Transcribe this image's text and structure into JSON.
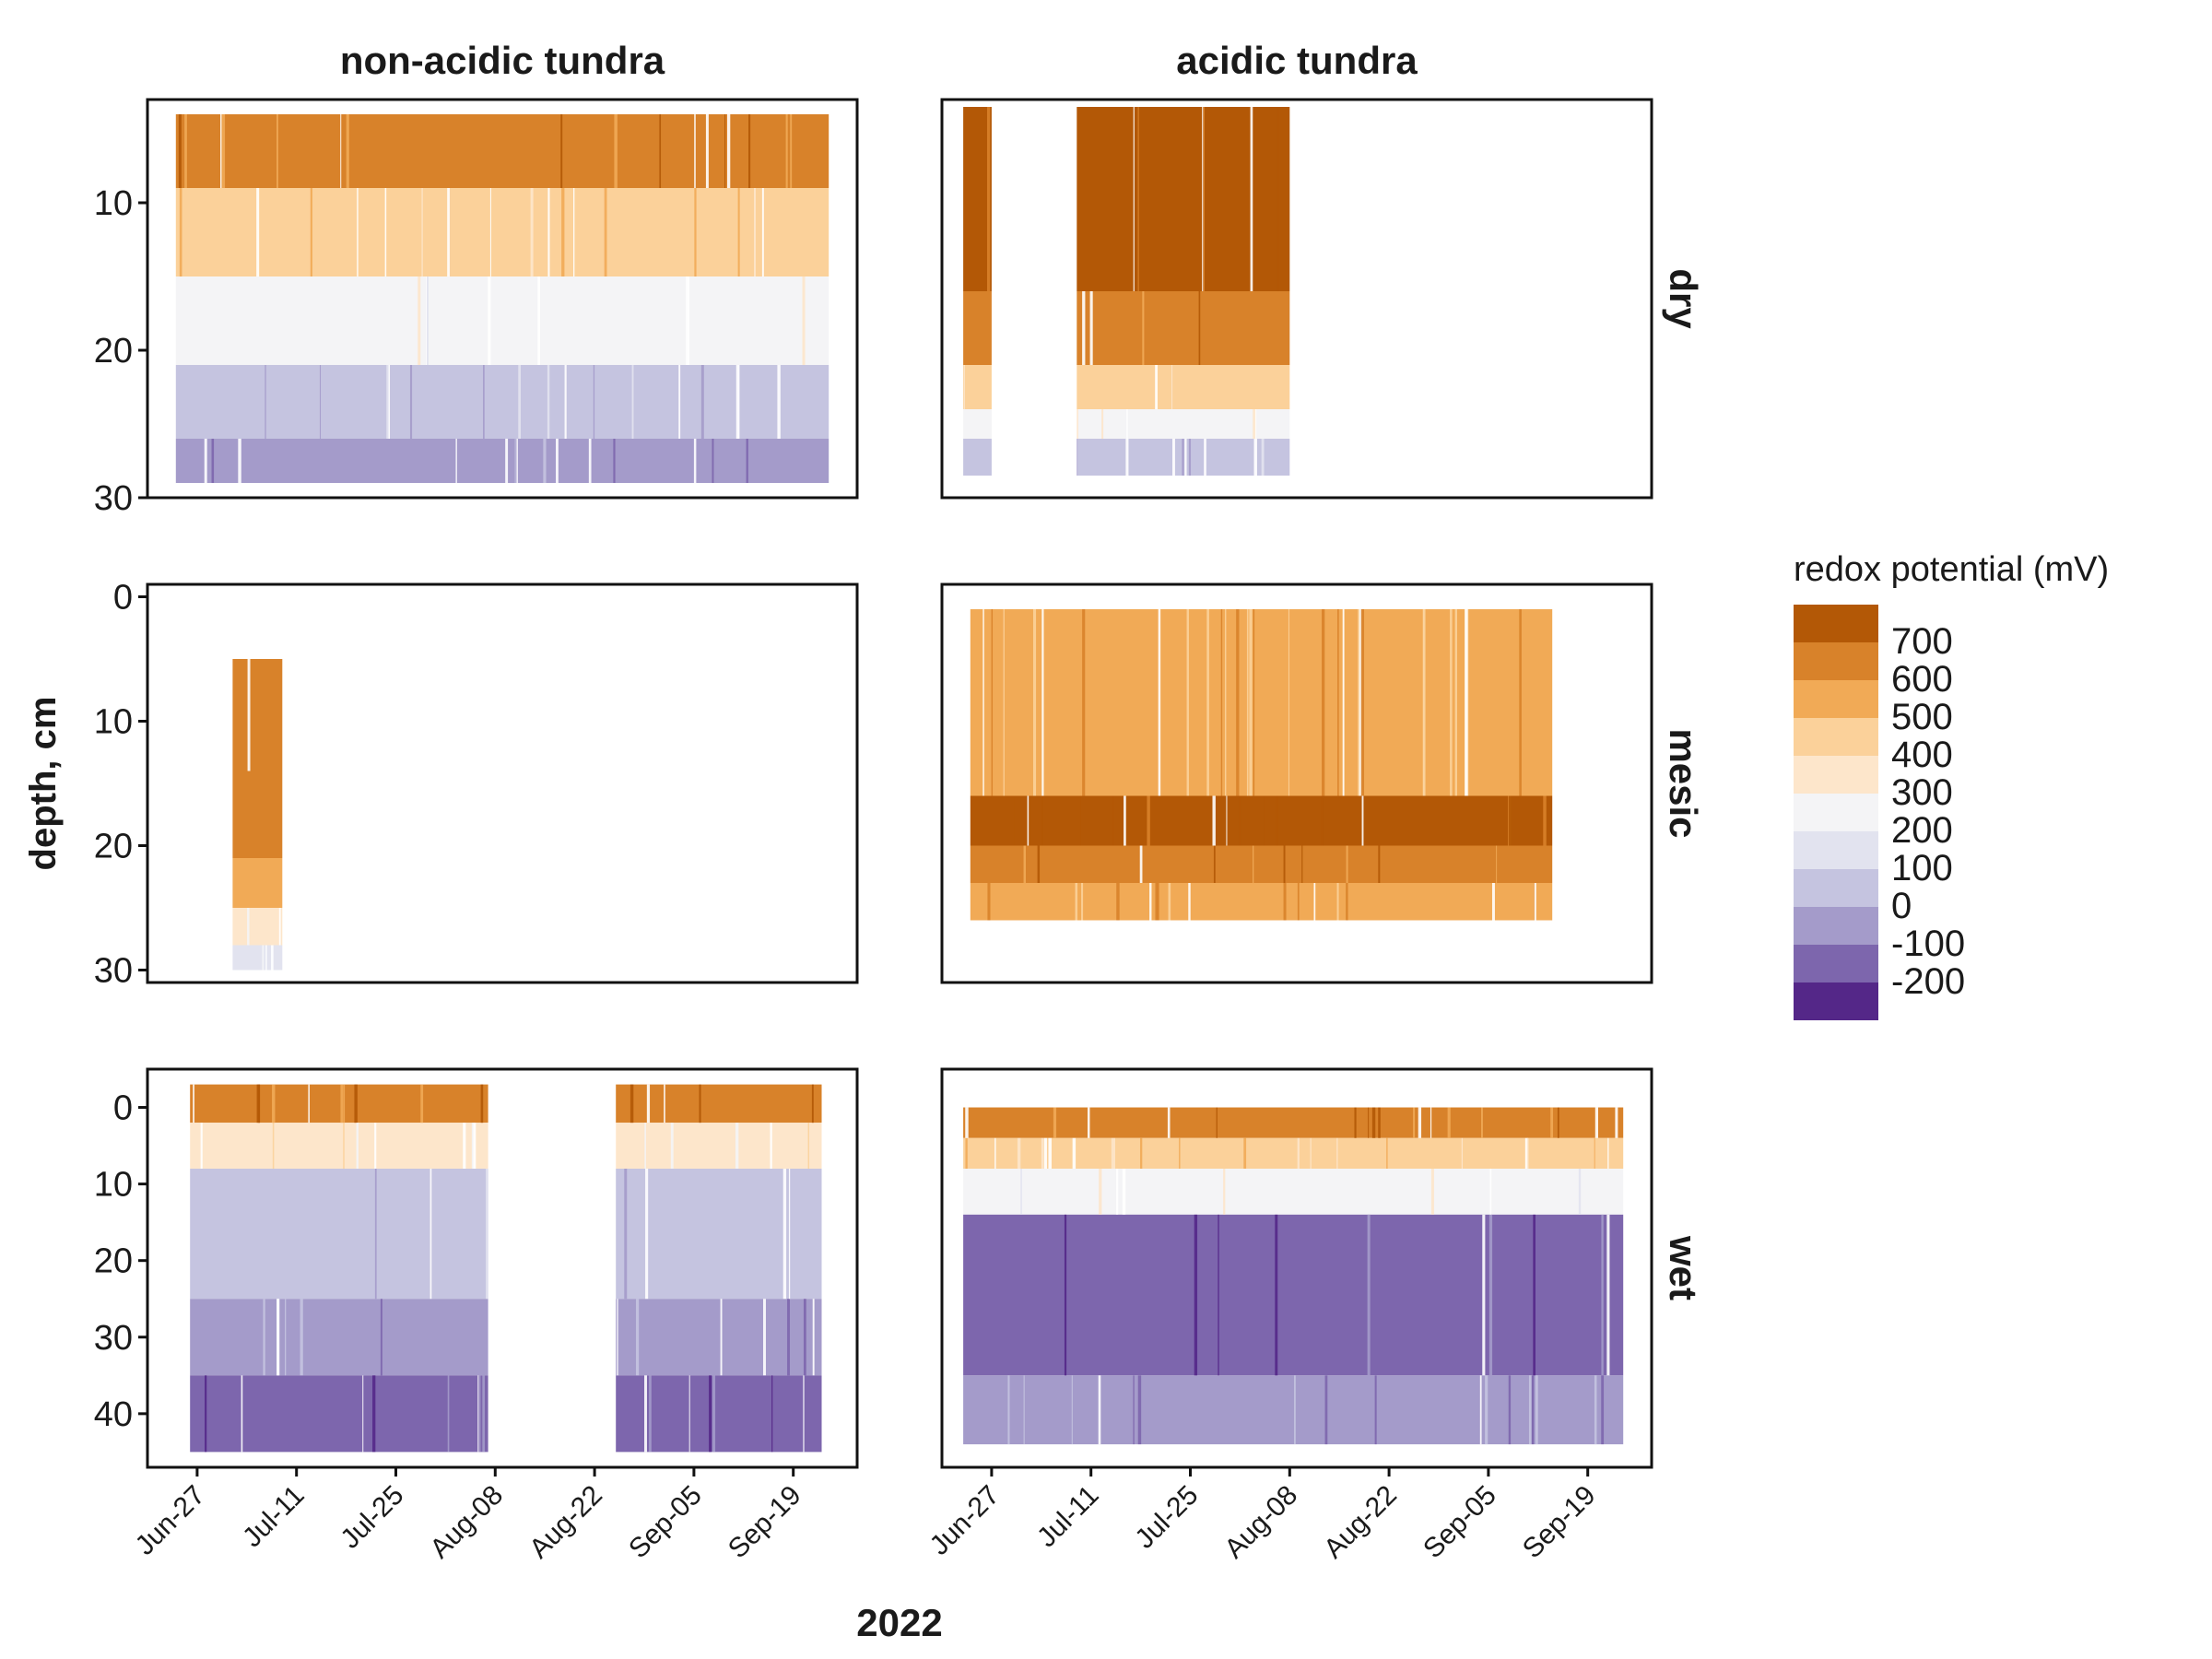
{
  "chart_data": {
    "type": "heatmap",
    "title": "",
    "xlabel": "2022",
    "ylabel": "depth, cm",
    "column_facets": [
      "non-acidic tundra",
      "acidic tundra"
    ],
    "row_facets": [
      "dry",
      "mesic",
      "wet"
    ],
    "x_ticks": [
      "Jun-27",
      "Jul-11",
      "Jul-25",
      "Aug-08",
      "Aug-22",
      "Sep-05",
      "Sep-19"
    ],
    "y_reversed": true,
    "y_ticks": {
      "dry": [
        "10",
        "20",
        "30"
      ],
      "mesic": [
        "0",
        "10",
        "20",
        "30"
      ],
      "wet": [
        "0",
        "10",
        "20",
        "30",
        "40"
      ]
    },
    "legend": {
      "title": "redox potential (mV)",
      "position": "right",
      "labels": [
        "700",
        "600",
        "500",
        "400",
        "300",
        "200",
        "100",
        "0",
        "-100",
        "-200"
      ],
      "colors": [
        "#b35806",
        "#d8822a",
        "#f1aa56",
        "#fbd19a",
        "#fde6cb",
        "#f4f4f6",
        "#e2e3ef",
        "#c5c4e0",
        "#a49bca",
        "#7d66ad",
        "#542788"
      ]
    },
    "panels": [
      {
        "site": "non-acidic tundra",
        "moisture": "dry",
        "date_range": [
          "2022-06-24",
          "2022-09-24"
        ],
        "depth_range": [
          4,
          29
        ],
        "layers": [
          {
            "depth": [
              4,
              9
            ],
            "redox_mV": 650
          },
          {
            "depth": [
              9,
              15
            ],
            "redox_mV": 450
          },
          {
            "depth": [
              15,
              21
            ],
            "redox_mV": 250
          },
          {
            "depth": [
              21,
              26
            ],
            "redox_mV": 50
          },
          {
            "depth": [
              26,
              29
            ],
            "redox_mV": -80
          }
        ]
      },
      {
        "site": "acidic tundra",
        "moisture": "dry",
        "date_range": [
          "2022-06-23",
          "2022-08-08"
        ],
        "depth_range": [
          3.5,
          28.5
        ],
        "gap": [
          "2022-06-27",
          "2022-07-09"
        ],
        "layers": [
          {
            "depth": [
              3.5,
              16
            ],
            "redox_mV": 720
          },
          {
            "depth": [
              16,
              21
            ],
            "redox_mV": 620
          },
          {
            "depth": [
              21,
              24
            ],
            "redox_mV": 420
          },
          {
            "depth": [
              24,
              26
            ],
            "redox_mV": 220
          },
          {
            "depth": [
              26,
              28.5
            ],
            "redox_mV": 30
          }
        ]
      },
      {
        "site": "non-acidic tundra",
        "moisture": "mesic",
        "date_range": [
          "2022-07-02",
          "2022-07-09"
        ],
        "depth_range": [
          5,
          30
        ],
        "layers": [
          {
            "depth": [
              5,
              14
            ],
            "redox_mV": 620
          },
          {
            "depth": [
              14,
              21
            ],
            "redox_mV": 680
          },
          {
            "depth": [
              21,
              25
            ],
            "redox_mV": 520
          },
          {
            "depth": [
              25,
              28
            ],
            "redox_mV": 330
          },
          {
            "depth": [
              28,
              30
            ],
            "redox_mV": 150
          }
        ]
      },
      {
        "site": "acidic tundra",
        "moisture": "mesic",
        "date_range": [
          "2022-06-24",
          "2022-09-14"
        ],
        "depth_range": [
          1,
          26
        ],
        "layers": [
          {
            "depth": [
              1,
              16
            ],
            "redox_mV": 560
          },
          {
            "depth": [
              16,
              20
            ],
            "redox_mV": 700
          },
          {
            "depth": [
              20,
              23
            ],
            "redox_mV": 600
          },
          {
            "depth": [
              23,
              26
            ],
            "redox_mV": 500
          }
        ]
      },
      {
        "site": "non-acidic tundra",
        "moisture": "wet",
        "date_range": [
          "2022-06-26",
          "2022-09-23"
        ],
        "depth_range": [
          -3,
          45
        ],
        "gap": [
          "2022-08-07",
          "2022-08-25"
        ],
        "layers": [
          {
            "depth": [
              -3,
              2
            ],
            "redox_mV": 620
          },
          {
            "depth": [
              2,
              8
            ],
            "redox_mV": 300
          },
          {
            "depth": [
              8,
              25
            ],
            "redox_mV": 80
          },
          {
            "depth": [
              25,
              35
            ],
            "redox_mV": -60
          },
          {
            "depth": [
              35,
              45
            ],
            "redox_mV": -120
          }
        ]
      },
      {
        "site": "acidic tundra",
        "moisture": "wet",
        "date_range": [
          "2022-06-23",
          "2022-09-24"
        ],
        "depth_range": [
          0,
          44
        ],
        "layers": [
          {
            "depth": [
              0,
              4
            ],
            "redox_mV": 600
          },
          {
            "depth": [
              4,
              8
            ],
            "redox_mV": 450
          },
          {
            "depth": [
              8,
              14
            ],
            "redox_mV": 250
          },
          {
            "depth": [
              14,
              35
            ],
            "redox_mV": -110
          },
          {
            "depth": [
              35,
              44
            ],
            "redox_mV": -60
          }
        ]
      }
    ]
  }
}
